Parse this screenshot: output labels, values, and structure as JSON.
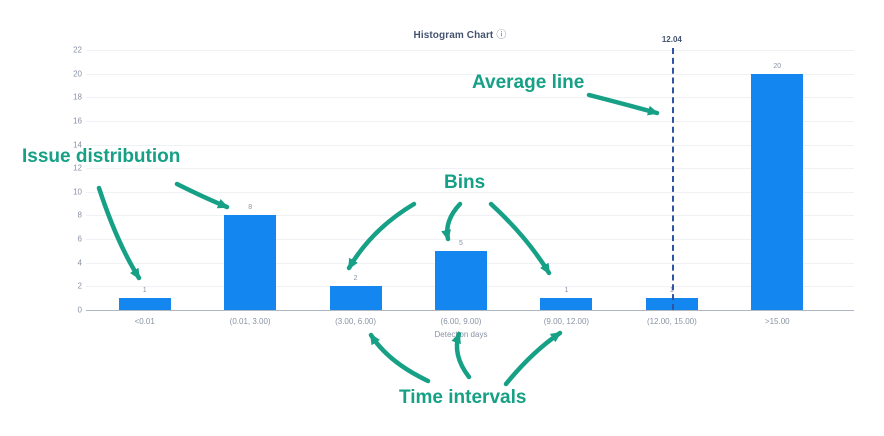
{
  "chart": {
    "title": "Histogram Chart",
    "info_icon": "ⓘ"
  },
  "colors": {
    "bar": "#1386F0",
    "average_line": "#2E55A3",
    "annotation": "#16A085",
    "axis_text": "#8993A4",
    "grid": "#EFF1F4",
    "baseline": "#AEB6C2",
    "title_text": "#44546F"
  },
  "chart_data": {
    "type": "bar",
    "title": "Histogram Chart",
    "categories": [
      "<0.01",
      "(0.01, 3.00)",
      "(3.00, 6.00)",
      "(6.00, 9.00)",
      "(9.00, 12.00)",
      "(12.00, 15.00)",
      ">15.00"
    ],
    "values": [
      1,
      8,
      2,
      5,
      1,
      1,
      20
    ],
    "bar_labels": [
      "1",
      "8",
      "2",
      "5",
      "1",
      "1",
      "20"
    ],
    "xlabel": "Detection days",
    "ylabel": "",
    "ylim": [
      0,
      22
    ],
    "ytick_step": 2,
    "grid": true,
    "legend": false,
    "average_line": {
      "value": 12.04,
      "label": "12.04",
      "bin_index": 5
    }
  },
  "annotations": {
    "issue_distribution": "Issue distribution",
    "bins": "Bins",
    "average_line": "Average line",
    "time_intervals": "Time intervals"
  }
}
